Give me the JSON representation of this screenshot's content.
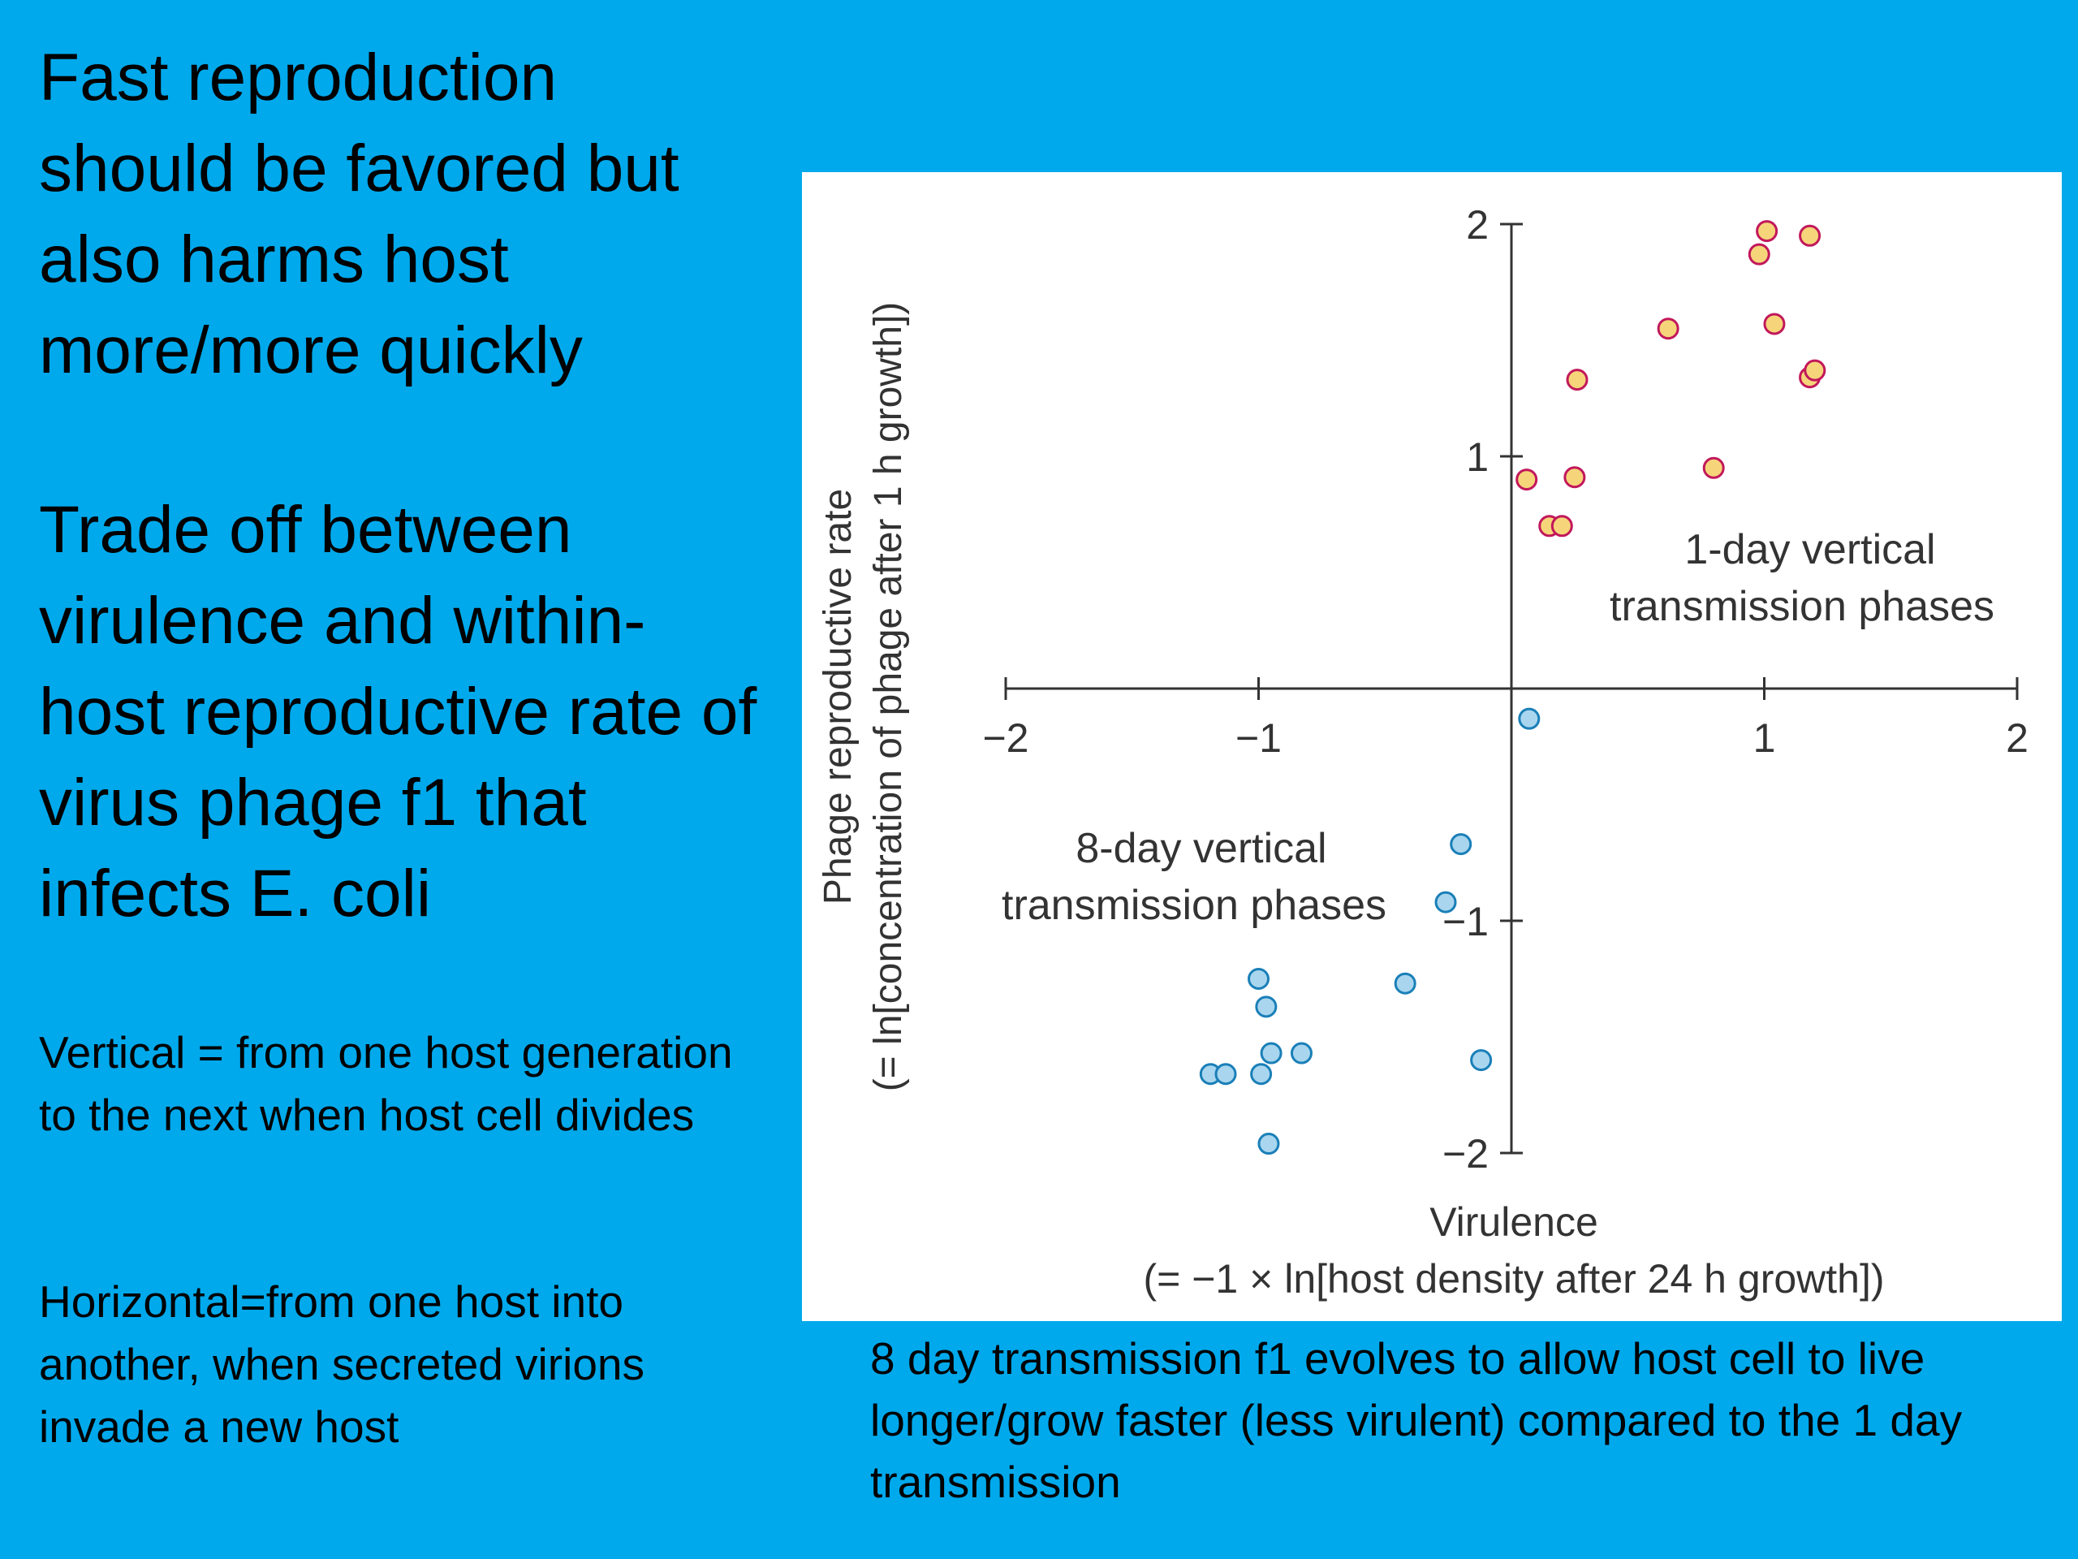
{
  "left": {
    "heading_1": "Fast reproduction should be favored but also harms host more/more quickly",
    "heading_2": "Trade off between virulence and within-host reproductive rate of virus phage f1 that infects E. coli",
    "note_vertical": "Vertical = from one host generation to the next when host cell divides",
    "note_horizontal": "Horizontal=from one host into another, when secreted virions invade a new host"
  },
  "caption": "8 day transmission f1 evolves to allow host cell to live longer/grow faster (less virulent) compared to the 1 day transmission",
  "colors": {
    "background": "#00a9ec",
    "one_day_fill": "#f6d57a",
    "one_day_stroke": "#c2185b",
    "eight_day_fill": "#a9d6ee",
    "eight_day_stroke": "#1a7fb8"
  },
  "chart_data": {
    "type": "scatter",
    "xlabel": "Virulence",
    "xlabel_sub": "(= −1 × ln[host density after 24 h growth])",
    "ylabel": "Phage reproductive rate",
    "ylabel_sub": "(= ln[concentration of phage after 1 h growth])",
    "xlim": [
      -2,
      2
    ],
    "ylim": [
      -2,
      2
    ],
    "x_ticks": [
      -2,
      -1,
      1,
      2
    ],
    "x_tick_labels": [
      "−2",
      "−1",
      "1",
      "2"
    ],
    "y_ticks": [
      2,
      1,
      -1,
      -2
    ],
    "y_tick_labels": [
      "2",
      "1",
      "−1",
      "−2"
    ],
    "grid": false,
    "series": [
      {
        "name": "1-day vertical transmission phases",
        "points": [
          [
            0.06,
            0.9
          ],
          [
            0.15,
            0.7
          ],
          [
            0.2,
            0.7
          ],
          [
            0.25,
            0.91
          ],
          [
            0.26,
            1.33
          ],
          [
            0.62,
            1.55
          ],
          [
            0.8,
            0.95
          ],
          [
            0.98,
            1.87
          ],
          [
            1.01,
            1.97
          ],
          [
            1.04,
            1.57
          ],
          [
            1.18,
            1.95
          ],
          [
            1.18,
            1.34
          ],
          [
            1.2,
            1.37
          ]
        ]
      },
      {
        "name": "8-day vertical transmission phases",
        "points": [
          [
            0.07,
            -0.13
          ],
          [
            -0.2,
            -0.67
          ],
          [
            -0.26,
            -0.92
          ],
          [
            -0.42,
            -1.27
          ],
          [
            -0.12,
            -1.6
          ],
          [
            -1.0,
            -1.25
          ],
          [
            -0.97,
            -1.37
          ],
          [
            -0.95,
            -1.57
          ],
          [
            -0.83,
            -1.57
          ],
          [
            -1.19,
            -1.66
          ],
          [
            -1.13,
            -1.66
          ],
          [
            -0.99,
            -1.66
          ],
          [
            -0.96,
            -1.96
          ]
        ]
      }
    ],
    "annotation_1day": [
      "1-day vertical",
      "transmission phases"
    ],
    "annotation_8day": [
      "8-day vertical",
      "transmission phases"
    ]
  }
}
